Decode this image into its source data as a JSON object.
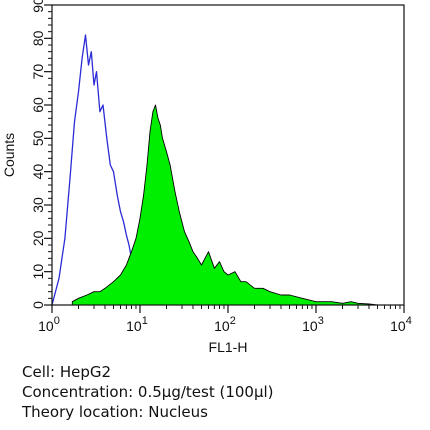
{
  "chart_data": {
    "type": "area",
    "xlabel": "FL1-H",
    "ylabel": "Counts",
    "xscale": "log",
    "xlim": [
      1,
      10000
    ],
    "ylim": [
      0,
      90
    ],
    "x_ticks": [
      {
        "value": 1,
        "base": "10",
        "exp": "0"
      },
      {
        "value": 10,
        "base": "10",
        "exp": "1"
      },
      {
        "value": 100,
        "base": "10",
        "exp": "2"
      },
      {
        "value": 1000,
        "base": "10",
        "exp": "3"
      },
      {
        "value": 10000,
        "base": "10",
        "exp": "4"
      }
    ],
    "y_ticks": [
      "0",
      "10",
      "20",
      "30",
      "40",
      "50",
      "60",
      "70",
      "80",
      "90"
    ],
    "grid": false,
    "legend": "none",
    "series": [
      {
        "style": "outline",
        "color": "#2b2bd6",
        "x": [
          1.0,
          1.2,
          1.4,
          1.6,
          1.8,
          2.0,
          2.2,
          2.4,
          2.6,
          2.8,
          3.0,
          3.2,
          3.5,
          3.8,
          4.2,
          4.6,
          5.0,
          5.5,
          6.0,
          6.5,
          7.0,
          7.5,
          8.0,
          9.0,
          10.0,
          11.0
        ],
        "values": [
          0,
          8,
          20,
          38,
          55,
          64,
          74,
          81,
          72,
          76,
          66,
          70,
          58,
          60,
          50,
          42,
          40,
          33,
          28,
          25,
          21,
          18,
          14,
          8,
          3,
          0
        ]
      },
      {
        "style": "filled",
        "color": "#00ee00",
        "x": [
          1.7,
          2,
          2.5,
          3,
          3.5,
          4,
          5,
          6,
          7,
          8,
          9,
          10,
          11,
          12,
          13,
          14,
          15,
          16,
          17,
          18,
          20,
          22,
          25,
          28,
          32,
          36,
          40,
          45,
          50,
          60,
          70,
          80,
          90,
          100,
          120,
          140,
          160,
          200,
          250,
          300,
          400,
          500,
          700,
          1000,
          1500,
          2000,
          2500,
          3000,
          4000,
          5000
        ],
        "values": [
          1,
          2,
          3,
          4,
          4,
          5,
          7,
          9,
          12,
          16,
          20,
          26,
          33,
          42,
          52,
          58,
          60,
          56,
          54,
          50,
          46,
          42,
          34,
          28,
          22,
          19,
          16,
          14,
          12,
          16,
          11,
          13,
          10,
          9,
          10,
          7,
          7,
          5,
          5,
          4,
          3,
          3,
          2,
          1,
          1,
          0.5,
          1,
          0.5,
          0.3,
          0
        ]
      }
    ]
  },
  "caption": {
    "cell": "Cell: HepG2",
    "concentration": "Concentration: 0.5µg/test (100µl)",
    "location": "Theory location: Nucleus"
  }
}
